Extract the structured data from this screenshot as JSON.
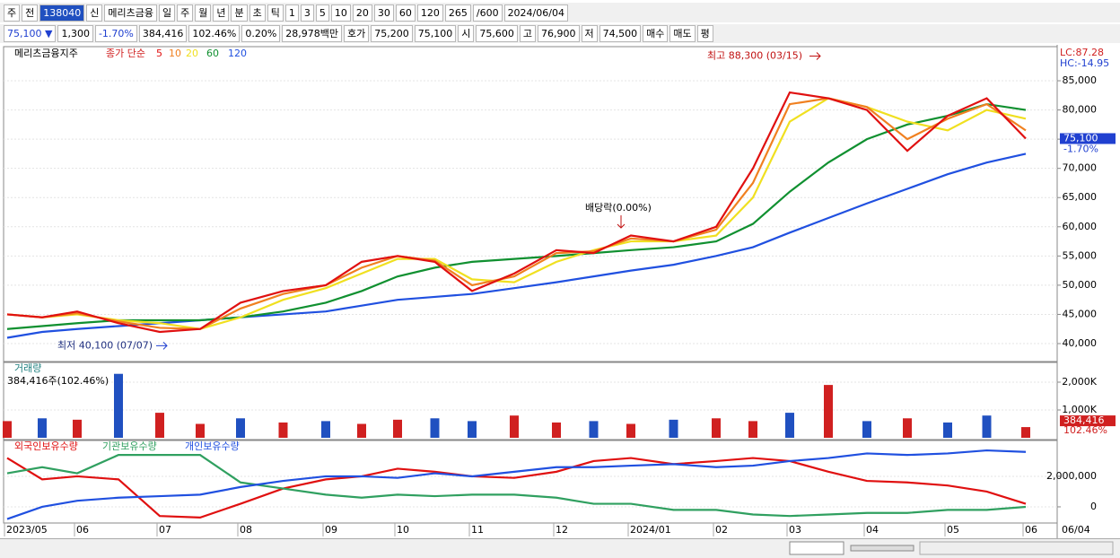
{
  "toolbar": {
    "items": [
      "주",
      "전",
      "138040",
      "신",
      "메리츠금융",
      "일",
      "주",
      "월",
      "년",
      "분",
      "초",
      "틱",
      "1",
      "3",
      "5",
      "10",
      "20",
      "30",
      "60",
      "120",
      "265",
      "/600",
      "2024/06/04"
    ]
  },
  "quote_bar": {
    "items": [
      "75,100 ▼",
      "1,300",
      "-1.70%",
      "384,416",
      "102.46%",
      "0.20%",
      "28,978백만",
      "호가",
      "75,200",
      "75,100",
      "시",
      "75,600",
      "고",
      "76,900",
      "저",
      "74,500",
      "매수",
      "매도",
      "평"
    ]
  },
  "x_axis": {
    "labels": [
      "2023/05",
      "06",
      "07",
      "08",
      "09",
      "10",
      "11",
      "12",
      "2024/01",
      "02",
      "03",
      "04",
      "05",
      "06"
    ],
    "end_label": "06/04"
  },
  "chart_data": [
    {
      "type": "line",
      "title": "메리츠금융지주",
      "subtitle": "종가 단순",
      "side_labels": [
        "LC:87.28",
        "HC:-14.95"
      ],
      "series": [
        {
          "name": "5",
          "color": "#e01010",
          "values": [
            45000,
            44500,
            45500,
            43500,
            42000,
            42500,
            47000,
            49000,
            50000,
            54000,
            55000,
            54000,
            49000,
            52000,
            56000,
            55500,
            58500,
            57500,
            60000,
            70000,
            83000,
            82000,
            80000,
            73000,
            79000,
            82000,
            75100
          ]
        },
        {
          "name": "10",
          "color": "#f08020",
          "values": [
            45000,
            44500,
            45200,
            43800,
            42700,
            42500,
            46000,
            48500,
            50000,
            53000,
            55000,
            54200,
            50000,
            51500,
            55500,
            55800,
            58000,
            57500,
            59500,
            67500,
            81000,
            82000,
            80500,
            75000,
            78500,
            81000,
            76500
          ]
        },
        {
          "name": "20",
          "color": "#f0e020",
          "values": [
            45000,
            44500,
            45000,
            44000,
            43500,
            42500,
            44500,
            47500,
            49500,
            52000,
            54500,
            54500,
            51000,
            50500,
            54000,
            56000,
            57500,
            57500,
            58500,
            65000,
            78000,
            82000,
            80500,
            78000,
            76500,
            80000,
            78500
          ]
        },
        {
          "name": "60",
          "color": "#109030",
          "values": [
            42500,
            43000,
            43500,
            44000,
            44000,
            44000,
            44500,
            45500,
            47000,
            49000,
            51500,
            53000,
            54000,
            54500,
            55000,
            55500,
            56000,
            56500,
            57500,
            60500,
            66000,
            71000,
            75000,
            77500,
            79000,
            81000,
            80000
          ]
        },
        {
          "name": "120",
          "color": "#2050e0",
          "values": [
            41000,
            42000,
            42500,
            43000,
            43500,
            44000,
            44500,
            45000,
            45500,
            46500,
            47500,
            48000,
            48500,
            49500,
            50500,
            51500,
            52500,
            53500,
            55000,
            56500,
            59000,
            61500,
            64000,
            66500,
            69000,
            71000,
            72500
          ]
        }
      ],
      "ylim": [
        36930,
        90840
      ],
      "yticks": [
        {
          "value": 40000,
          "label": "40,000"
        },
        {
          "value": 45000,
          "label": "45,000"
        },
        {
          "value": 50000,
          "label": "50,000"
        },
        {
          "value": 55000,
          "label": "55,000"
        },
        {
          "value": 60000,
          "label": "60,000"
        },
        {
          "value": 65000,
          "label": "65,000"
        },
        {
          "value": 70000,
          "label": "70,000"
        },
        {
          "value": 75000,
          "label": "75,000"
        },
        {
          "value": 80000,
          "label": "80,000"
        },
        {
          "value": 85000,
          "label": "85,000"
        }
      ],
      "high": {
        "value": 88300,
        "label": "최고 88,300 (03/15)"
      },
      "low": {
        "value": 40100,
        "label": "최저 40,100 (07/07)"
      },
      "event": "배당락(0.00%)",
      "current": {
        "value": 75100,
        "label": "75,100"
      },
      "change": "-1.70%"
    },
    {
      "type": "bar",
      "title": "거래량",
      "subtitle": "384,416주(102.46%)",
      "values": [
        600000,
        700000,
        650000,
        2300000,
        900000,
        500000,
        700000,
        550000,
        600000,
        500000,
        650000,
        700000,
        600000,
        800000,
        550000,
        600000,
        500000,
        650000,
        700000,
        600000,
        900000,
        1900000,
        600000,
        700000,
        550000,
        800000,
        384416
      ],
      "colors": [
        "#d02020",
        "#2050c0",
        "#d02020",
        "#2050c0",
        "#d02020",
        "#d02020",
        "#2050c0",
        "#d02020",
        "#2050c0",
        "#d02020",
        "#d02020",
        "#2050c0",
        "#2050c0",
        "#d02020",
        "#d02020",
        "#2050c0",
        "#d02020",
        "#2050c0",
        "#d02020",
        "#d02020",
        "#2050c0",
        "#d02020",
        "#2050c0",
        "#d02020",
        "#2050c0",
        "#2050c0",
        "#d02020"
      ],
      "ylim": [
        0,
        2710000
      ],
      "yticks": [
        {
          "value": 1000000,
          "label": "1,000K"
        },
        {
          "value": 2000000,
          "label": "2,000K"
        }
      ],
      "current": {
        "value": 384416,
        "label": "384,416"
      },
      "change": "102.46%"
    },
    {
      "type": "line",
      "series": [
        {
          "name": "외국인보유수량",
          "color": "#e01010",
          "values": [
            3200000,
            1800000,
            2000000,
            1800000,
            -600000,
            -700000,
            200000,
            1200000,
            1800000,
            2000000,
            2500000,
            2300000,
            2000000,
            1900000,
            2300000,
            3000000,
            3200000,
            2800000,
            3000000,
            3200000,
            3000000,
            2300000,
            1700000,
            1600000,
            1400000,
            1000000,
            200000
          ]
        },
        {
          "name": "기관보유수량",
          "color": "#30a060",
          "values": [
            2200000,
            2600000,
            2200000,
            3400000,
            3400000,
            3400000,
            1600000,
            1200000,
            800000,
            600000,
            800000,
            700000,
            800000,
            800000,
            600000,
            200000,
            200000,
            -200000,
            -200000,
            -500000,
            -600000,
            -500000,
            -400000,
            -400000,
            -200000,
            -200000,
            0
          ]
        },
        {
          "name": "개인보유수량",
          "color": "#2050e0",
          "values": [
            -800000,
            0,
            400000,
            600000,
            700000,
            800000,
            1300000,
            1700000,
            2000000,
            2000000,
            1900000,
            2200000,
            2000000,
            2300000,
            2600000,
            2600000,
            2700000,
            2800000,
            2600000,
            2700000,
            3000000,
            3200000,
            3500000,
            3400000,
            3500000,
            3700000,
            3600000
          ]
        }
      ],
      "ylim": [
        -1060000,
        4350000
      ],
      "yticks": [
        0,
        {
          "value": 2000000,
          "label": "2,000,000"
        }
      ]
    }
  ]
}
